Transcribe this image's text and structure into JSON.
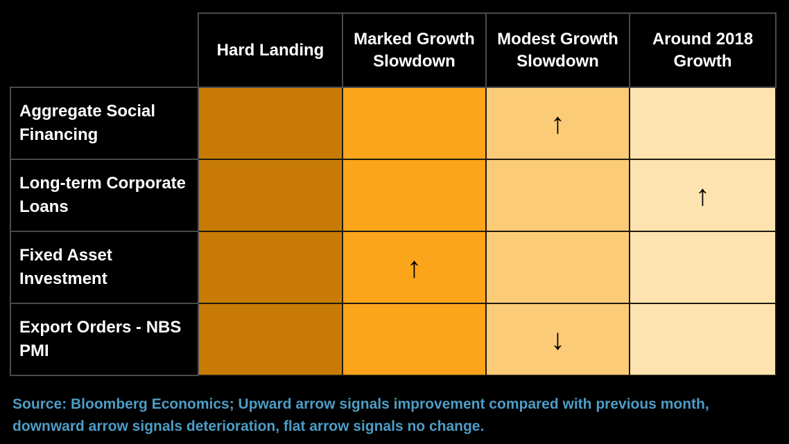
{
  "chart_data": {
    "type": "heatmap",
    "title": "",
    "columns": [
      "Hard Landing",
      "Marked Growth Slowdown",
      "Modest Growth Slowdown",
      "Around 2018 Growth"
    ],
    "rows": [
      "Aggregate Social Financing",
      "Long-term Corporate Loans",
      "Fixed Asset Investment",
      "Export Orders - NBS PMI"
    ],
    "column_colors": [
      "#c87b04",
      "#fca41a",
      "#fbcb77",
      "#fde3b0"
    ],
    "annotations": [
      {
        "row": "Aggregate Social Financing",
        "column": "Modest Growth Slowdown",
        "arrow": "up"
      },
      {
        "row": "Long-term Corporate Loans",
        "column": "Around 2018 Growth",
        "arrow": "up"
      },
      {
        "row": "Fixed Asset Investment",
        "column": "Marked Growth Slowdown",
        "arrow": "up"
      },
      {
        "row": "Export Orders - NBS PMI",
        "column": "Modest Growth Slowdown",
        "arrow": "down"
      }
    ],
    "legend_note": "Upward arrow signals improvement compared with previous month, downward arrow signals deterioration, flat arrow signals no change.",
    "source": "Bloomberg Economics"
  },
  "table": {
    "columns": [
      "Hard Landing",
      "Marked Growth Slowdown",
      "Modest Growth Slowdown",
      "Around 2018 Growth"
    ],
    "column_colors": [
      "#c87b04",
      "#fca41a",
      "#fbcb77",
      "#fde3b0"
    ],
    "rows": [
      {
        "label": "Aggregate Social Financing",
        "cells": [
          "",
          "",
          "↑",
          ""
        ]
      },
      {
        "label": "Long-term Corporate Loans",
        "cells": [
          "",
          "",
          "",
          "↑"
        ]
      },
      {
        "label": "Fixed Asset Investment",
        "cells": [
          "",
          "↑",
          "",
          ""
        ]
      },
      {
        "label": "Export Orders - NBS PMI",
        "cells": [
          "",
          "",
          "↓",
          ""
        ]
      }
    ]
  },
  "footer": {
    "source_text": "Source: Bloomberg Economics; Upward arrow signals improvement compared with previous month, downward arrow signals deterioration, flat arrow signals no change.",
    "text_color": "#4d9dc6"
  },
  "colors": {
    "background": "#000000",
    "header_text": "#ffffff",
    "arrow": "#000000",
    "grid_header": "#4a4a4a",
    "grid_data": "#1e1a10"
  }
}
